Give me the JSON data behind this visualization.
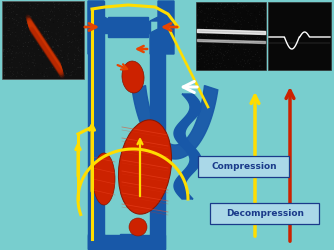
{
  "bg_color": "#78cece",
  "blue_color": "#1858a8",
  "red_color": "#cc2200",
  "yellow_color": "#ffdd00",
  "orange_color": "#e84400",
  "dark_blue_text": "#1a3a8a",
  "label_bg": "#a8dce8",
  "compression_label": "Compression",
  "decompression_label": "Decompression",
  "fig_width": 3.34,
  "fig_height": 2.51,
  "dpi": 100
}
